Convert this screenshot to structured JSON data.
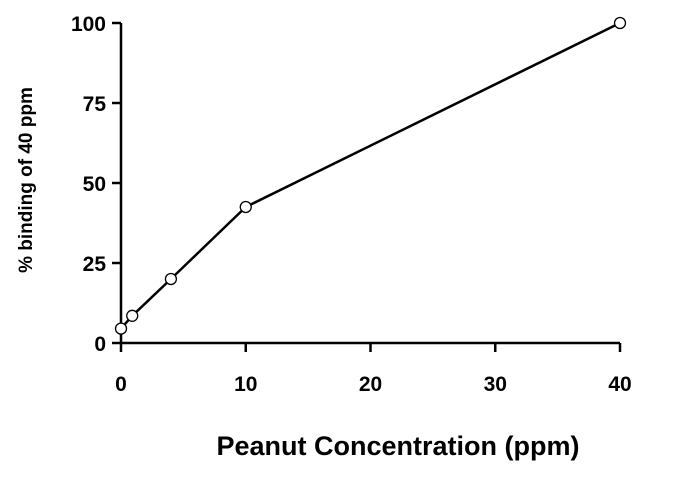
{
  "chart_data": {
    "type": "line",
    "title": "",
    "xlabel": "Peanut Concentration (ppm)",
    "ylabel": "% binding of 40 ppm",
    "xlim": [
      0,
      40
    ],
    "ylim": [
      0,
      100
    ],
    "xticks": [
      0,
      10,
      20,
      30,
      40
    ],
    "yticks": [
      0,
      25,
      50,
      75,
      100
    ],
    "xtick_labels": [
      "0",
      "10",
      "20",
      "30",
      "40"
    ],
    "ytick_labels": [
      "0",
      "25",
      "50",
      "75",
      "100"
    ],
    "grid": false,
    "series": [
      {
        "x": [
          0,
          0.9,
          4,
          10,
          40
        ],
        "y": [
          4.5,
          8.5,
          20,
          42.5,
          100
        ],
        "color": "#000000",
        "marker": "open-circle"
      }
    ]
  }
}
